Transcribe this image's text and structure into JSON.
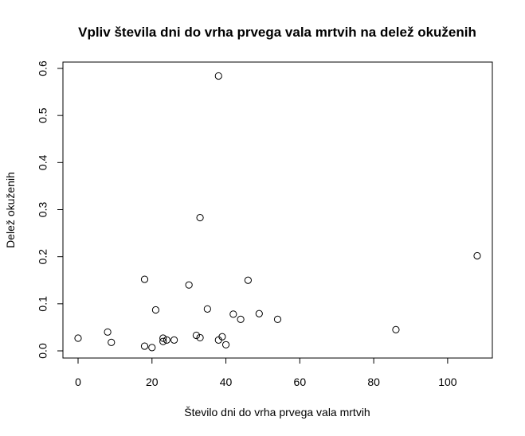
{
  "chart_data": {
    "type": "scatter",
    "title": "Vpliv števila dni do vrha prvega vala mrtvih na delež okuženih",
    "xlabel": "Število dni do vrha prvega vala mrtvih",
    "ylabel": "Delež okuženih",
    "xlim": [
      0,
      108
    ],
    "ylim": [
      0,
      0.6
    ],
    "xticks": [
      0,
      20,
      40,
      60,
      80,
      100
    ],
    "yticks": [
      0.0,
      0.1,
      0.2,
      0.3,
      0.4,
      0.5,
      0.6
    ],
    "xtick_labels": [
      "0",
      "20",
      "40",
      "60",
      "80",
      "100"
    ],
    "ytick_labels": [
      "0.0",
      "0.1",
      "0.2",
      "0.3",
      "0.4",
      "0.5",
      "0.6"
    ],
    "grid": false,
    "legend": false,
    "point_shape": "open-circle",
    "point_color": "#000000",
    "points": [
      {
        "x": 0,
        "y": 0.027
      },
      {
        "x": 8,
        "y": 0.04
      },
      {
        "x": 9,
        "y": 0.018
      },
      {
        "x": 18,
        "y": 0.152
      },
      {
        "x": 18,
        "y": 0.01
      },
      {
        "x": 20,
        "y": 0.007
      },
      {
        "x": 21,
        "y": 0.087
      },
      {
        "x": 23,
        "y": 0.027
      },
      {
        "x": 23,
        "y": 0.02
      },
      {
        "x": 24,
        "y": 0.023
      },
      {
        "x": 26,
        "y": 0.023
      },
      {
        "x": 30,
        "y": 0.14
      },
      {
        "x": 32,
        "y": 0.033
      },
      {
        "x": 33,
        "y": 0.283
      },
      {
        "x": 33,
        "y": 0.028
      },
      {
        "x": 35,
        "y": 0.089
      },
      {
        "x": 38,
        "y": 0.584
      },
      {
        "x": 38,
        "y": 0.023
      },
      {
        "x": 39,
        "y": 0.03
      },
      {
        "x": 40,
        "y": 0.013
      },
      {
        "x": 42,
        "y": 0.078
      },
      {
        "x": 44,
        "y": 0.067
      },
      {
        "x": 46,
        "y": 0.15
      },
      {
        "x": 49,
        "y": 0.079
      },
      {
        "x": 54,
        "y": 0.067
      },
      {
        "x": 86,
        "y": 0.045
      },
      {
        "x": 108,
        "y": 0.202
      }
    ]
  }
}
